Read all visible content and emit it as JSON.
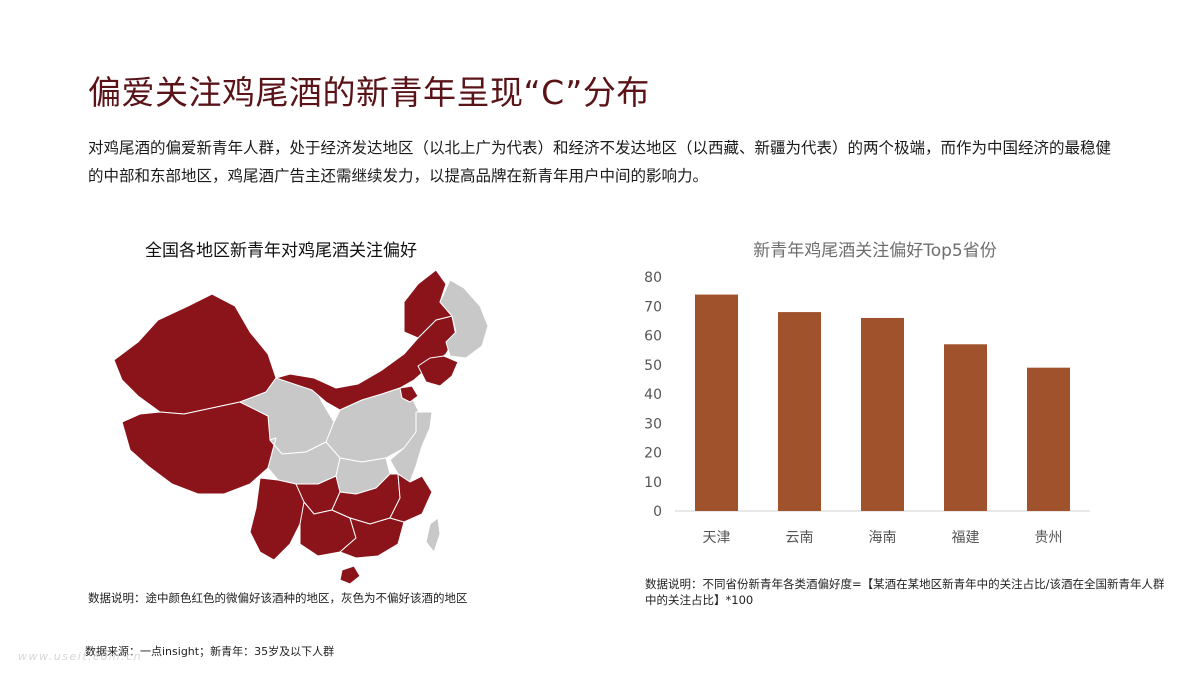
{
  "title": "偏爱关注鸡尾酒的新青年呈现“C”分布",
  "description": "对鸡尾酒的偏爱新青年人群，处于经济发达地区（以北上广为代表）和经济不发达地区（以西藏、新疆为代表）的两个极端，而作为中国经济的最稳健的中部和东部地区，鸡尾酒广告主还需继续发力，以提高品牌在新青年用户中间的影响力。",
  "map": {
    "title": "全国各地区新青年对鸡尾酒关注偏好",
    "note": "数据说明：途中颜色红色的微偏好该酒种的地区，灰色为不偏好该酒的地区",
    "colors": {
      "prefer": "#8b141b",
      "not_prefer": "#c8c8c8"
    }
  },
  "chart_data": {
    "type": "bar",
    "title": "新青年鸡尾酒关注偏好Top5省份",
    "categories": [
      "天津",
      "云南",
      "海南",
      "福建",
      "贵州"
    ],
    "values": [
      74,
      68,
      66,
      57,
      49
    ],
    "ylim": [
      0,
      80
    ],
    "yticks": [
      0,
      10,
      20,
      30,
      40,
      50,
      60,
      70,
      80
    ],
    "grid": false,
    "color": "#a0522d"
  },
  "chart_note": "数据说明：不同省份新青年各类酒偏好度=【某酒在某地区新青年中的关注占比/该酒在全国新青年人群中的关注占比】*100",
  "source": "数据来源：一点insight；新青年：35岁及以下人群",
  "watermark": "www.useit.com.cn"
}
